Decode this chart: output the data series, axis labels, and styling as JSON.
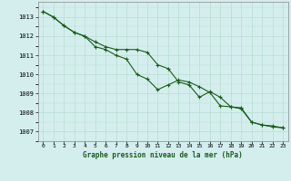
{
  "title": "Graphe pression niveau de la mer (hPa)",
  "background_color": "#d4eeee",
  "line_color": "#1a5c1a",
  "grid_color": "#b8ddd0",
  "x_ticks": [
    0,
    1,
    2,
    3,
    4,
    5,
    6,
    7,
    8,
    9,
    10,
    11,
    12,
    13,
    14,
    15,
    16,
    17,
    18,
    19,
    20,
    21,
    22,
    23
  ],
  "y_ticks": [
    1007,
    1008,
    1009,
    1010,
    1011,
    1012,
    1013
  ],
  "ylim": [
    1006.5,
    1013.8
  ],
  "xlim": [
    -0.5,
    23.5
  ],
  "series1": [
    1013.3,
    1013.0,
    1012.55,
    1012.2,
    1012.0,
    1011.7,
    1011.45,
    1011.3,
    1011.3,
    1011.3,
    1011.15,
    1010.5,
    1010.3,
    1009.6,
    1009.45,
    1008.8,
    1009.1,
    1008.8,
    1008.3,
    1008.25,
    1007.5,
    1007.35,
    1007.25,
    1007.2
  ],
  "series2": [
    1013.3,
    1013.0,
    1012.55,
    1012.2,
    1012.0,
    1011.45,
    1011.3,
    1011.0,
    1010.8,
    1010.0,
    1009.75,
    1009.2,
    1009.45,
    1009.7,
    1009.6,
    1009.35,
    1009.05,
    1008.35,
    1008.3,
    1008.2,
    1007.5,
    1007.35,
    1007.3,
    1007.2
  ]
}
